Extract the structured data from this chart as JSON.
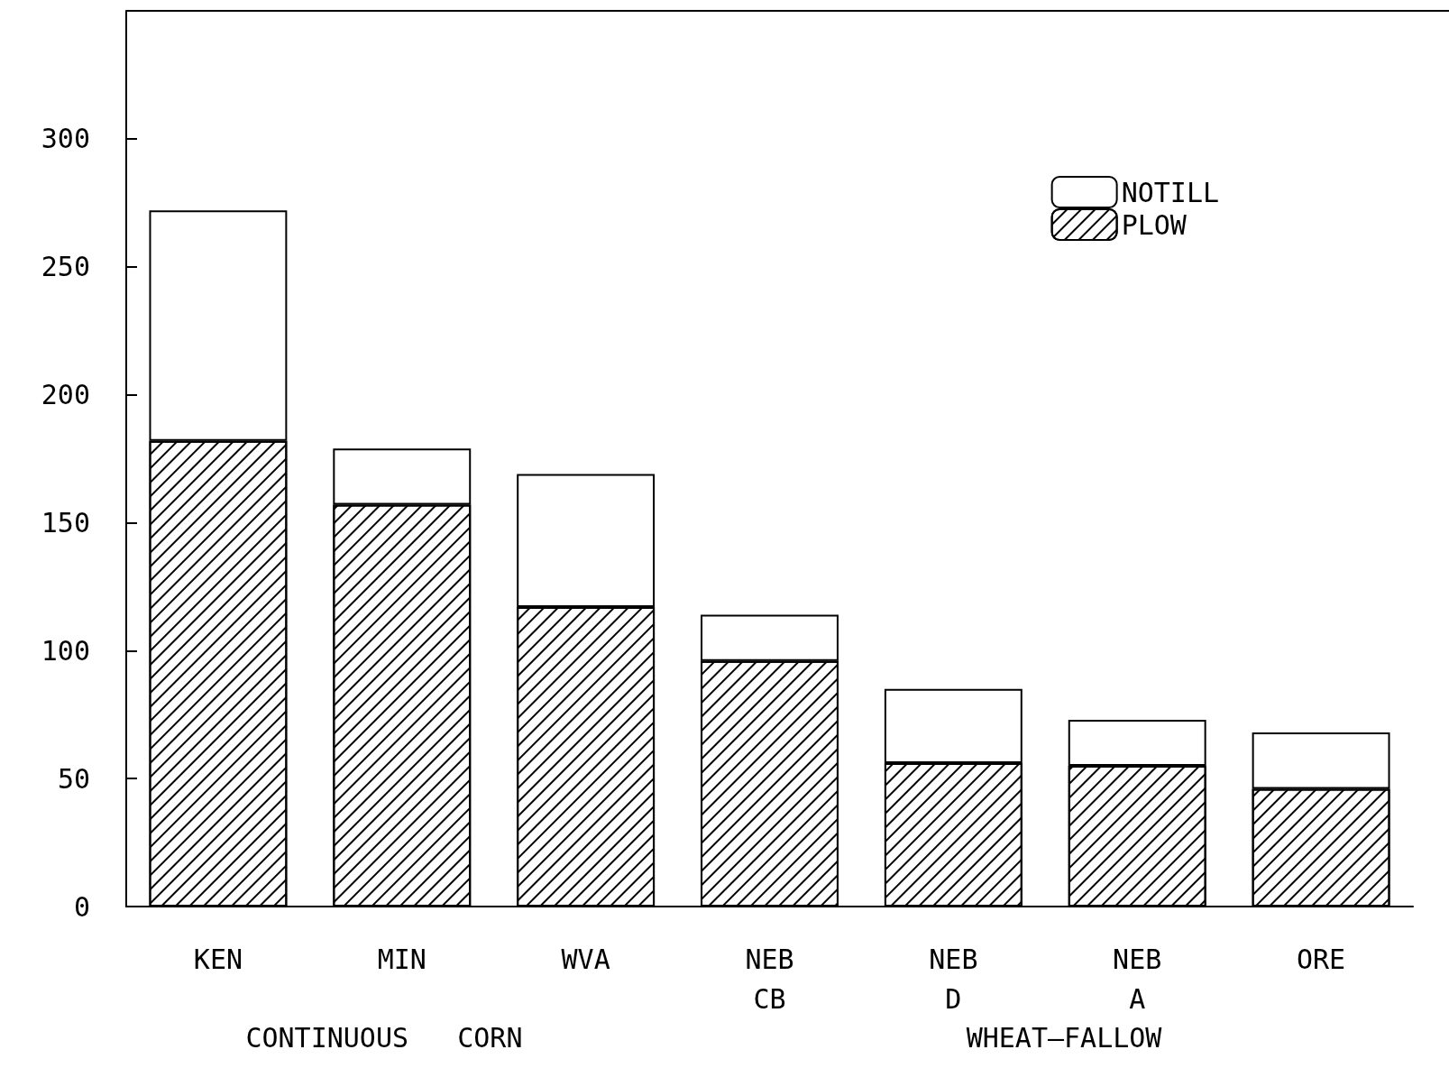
{
  "chart_data": {
    "type": "bar",
    "stacked": true,
    "categories": [
      "KEN",
      "MIN",
      "WVA",
      "NEB\nCB",
      "NEB\nD",
      "NEB\nA",
      "ORE"
    ],
    "series": [
      {
        "name": "PLOW",
        "color": "#000000",
        "values": [
          182,
          157,
          117,
          96,
          56,
          55,
          46
        ]
      },
      {
        "name": "NOTILL",
        "color": "#ffffff",
        "values": [
          90,
          22,
          52,
          18,
          29,
          18,
          22
        ]
      }
    ],
    "ylim": [
      0,
      350
    ],
    "yticks": [
      0,
      50,
      100,
      150,
      200,
      250,
      300
    ],
    "grid": false,
    "legend": "top right",
    "annotations": [
      "CONTINUOUS   CORN",
      "WHEAT—FALLOW"
    ]
  }
}
